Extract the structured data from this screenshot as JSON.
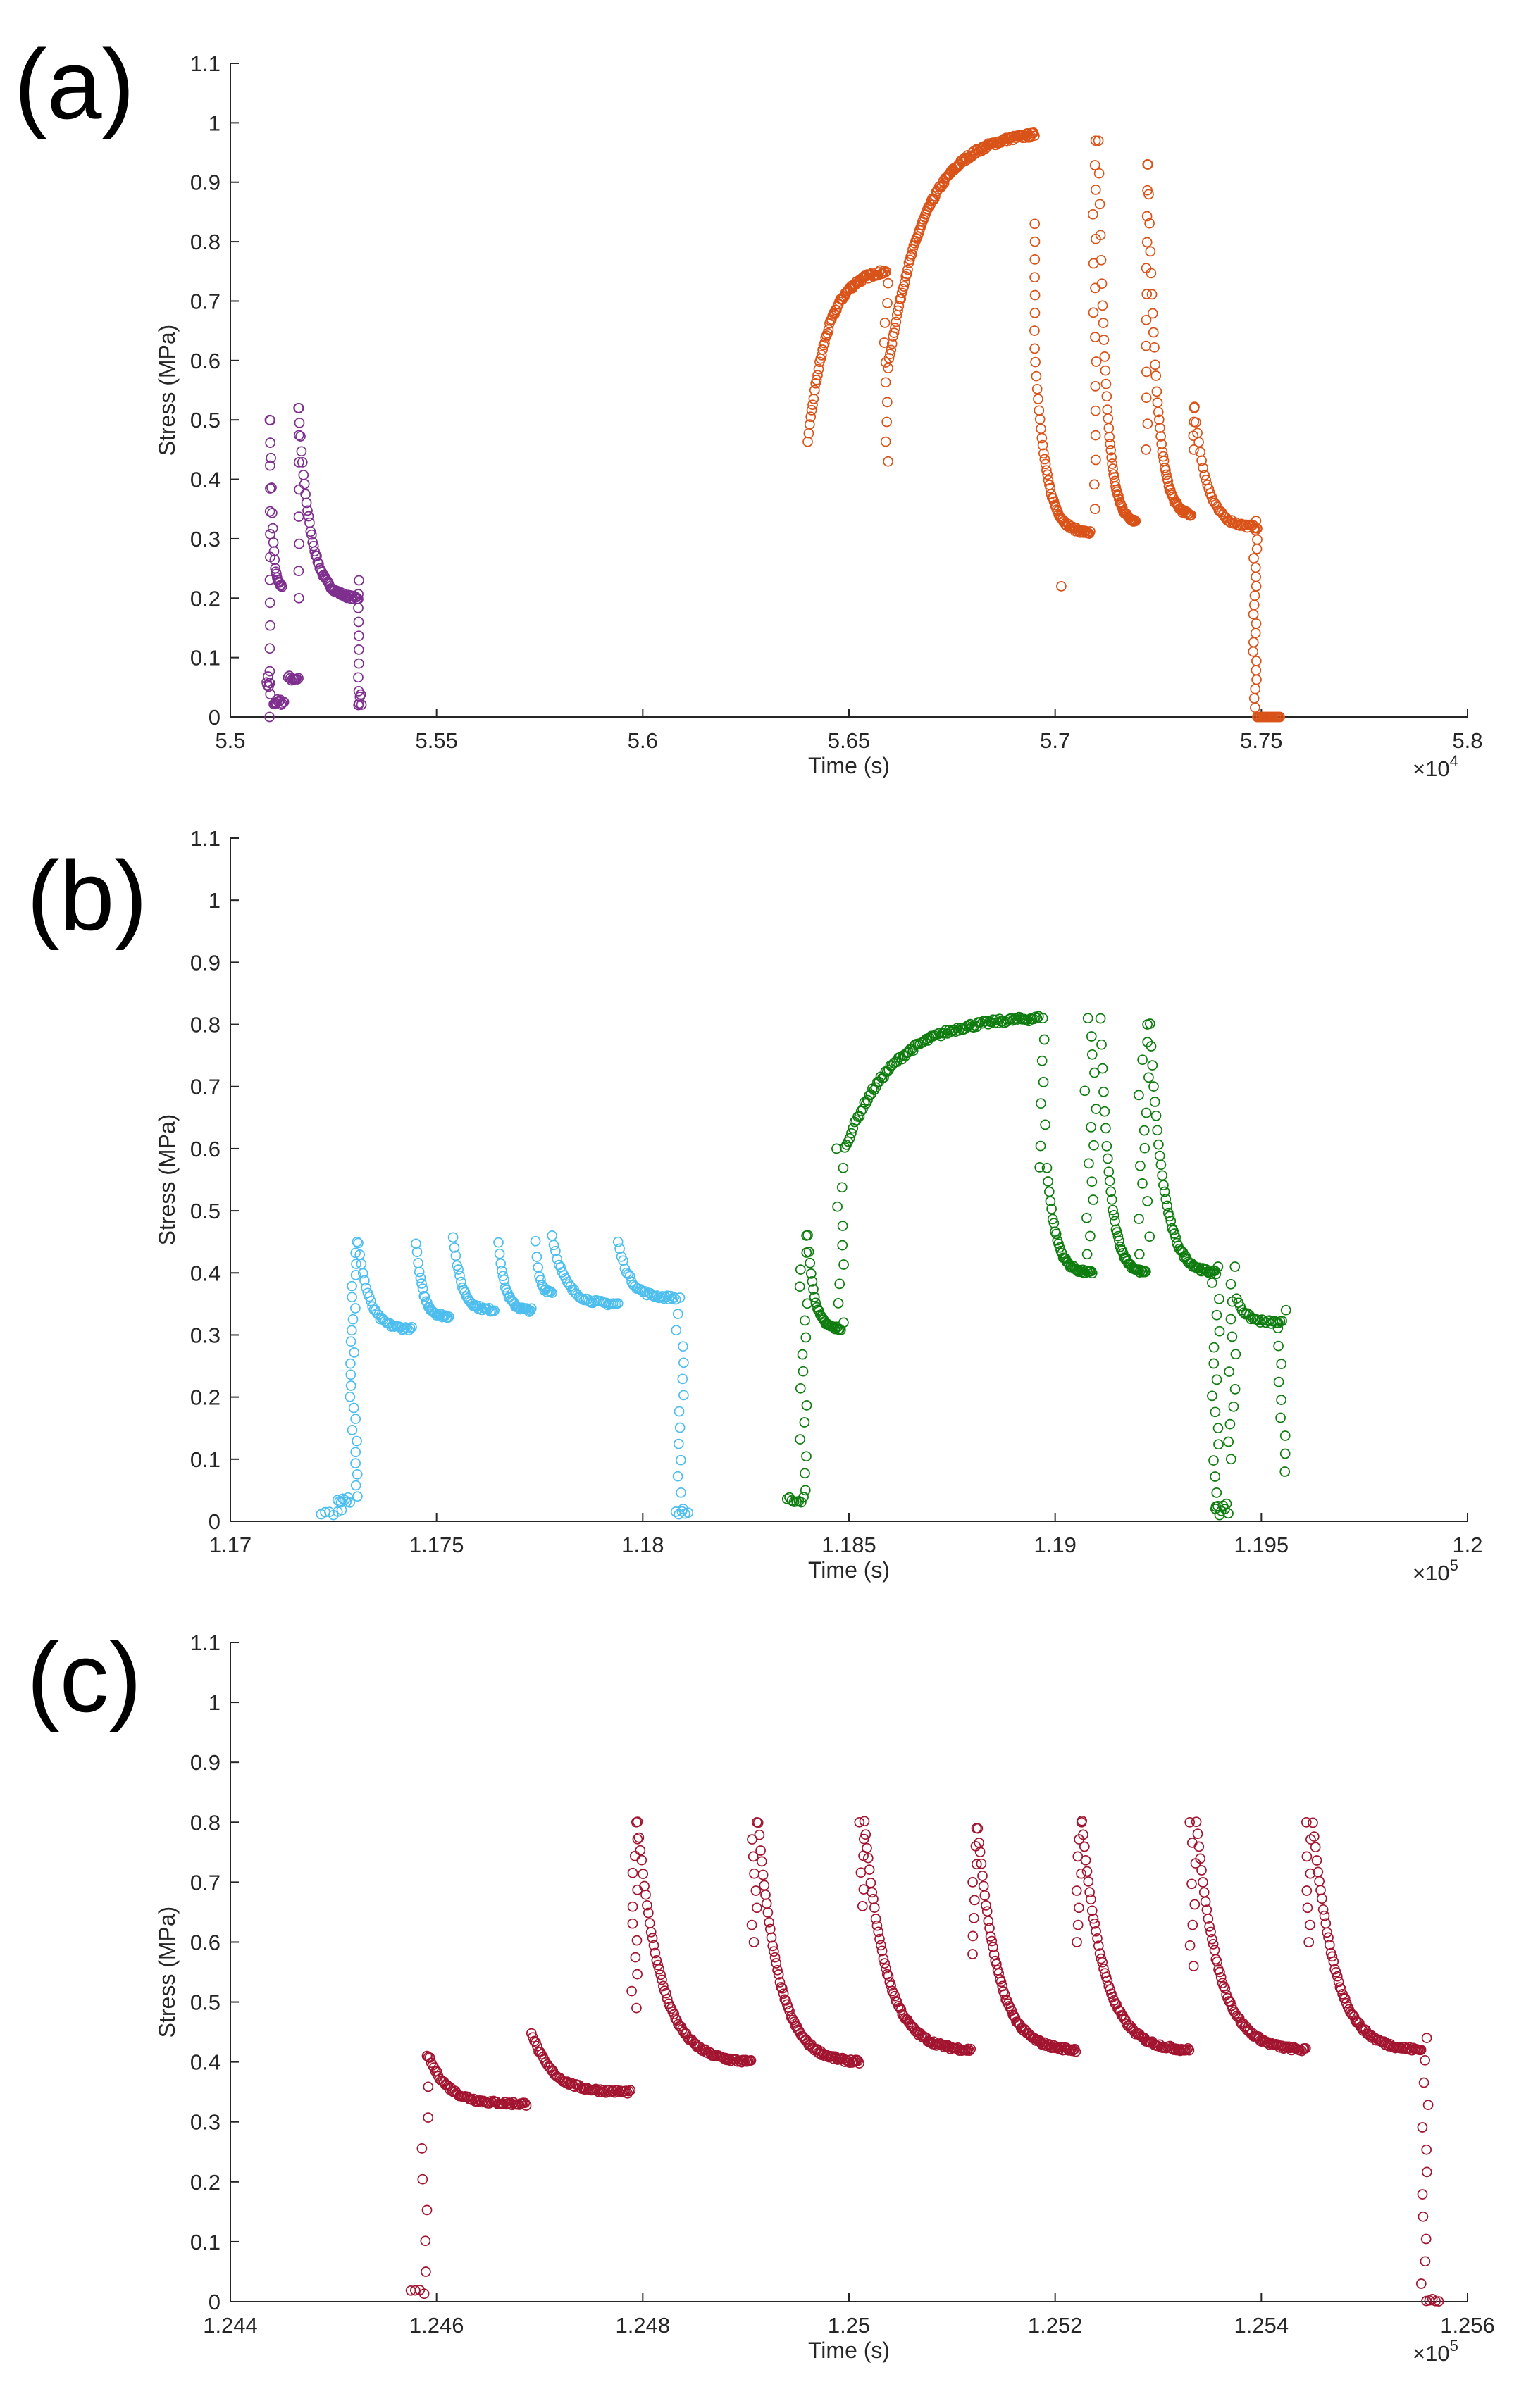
{
  "chart_data": [
    {
      "type": "scatter",
      "panel_label": "(a)",
      "title": "",
      "xlabel": "Time (s)",
      "ylabel": "Stress (MPa)",
      "xlim": [
        5.5,
        5.8
      ],
      "ylim": [
        0,
        1.1
      ],
      "x_scale_label": "×10",
      "x_scale_exp": "4",
      "x_ticks": [
        5.5,
        5.55,
        5.6,
        5.65,
        5.7,
        5.75,
        5.8
      ],
      "x_tick_labels": [
        "5.5",
        "5.55",
        "5.6",
        "5.65",
        "5.7",
        "5.75",
        "5.8"
      ],
      "y_ticks": [
        0,
        0.1,
        0.2,
        0.3,
        0.4,
        0.5,
        0.6,
        0.7,
        0.8,
        0.9,
        1,
        1.1
      ],
      "y_tick_labels": [
        "0",
        "0.1",
        "0.2",
        "0.3",
        "0.4",
        "0.5",
        "0.6",
        "0.7",
        "0.8",
        "0.9",
        "1",
        "1.1"
      ],
      "series": [
        {
          "name": "series-1",
          "color": "#7e2f8e",
          "segments": [
            {
              "kind": "drop",
              "x0": 5.5095,
              "x1": 5.5097,
              "y0": 0.0,
              "y1": 0.5,
              "n": 14
            },
            {
              "kind": "decay",
              "x0": 5.5097,
              "x1": 5.5125,
              "y0": 0.5,
              "y1": 0.22,
              "n": 20
            },
            {
              "kind": "flat",
              "x0": 5.5105,
              "x1": 5.513,
              "y0": 0.02,
              "y1": 0.03,
              "n": 12
            },
            {
              "kind": "flat",
              "x0": 5.5088,
              "x1": 5.5096,
              "y0": 0.05,
              "y1": 0.07,
              "n": 6
            },
            {
              "kind": "flat",
              "x0": 5.514,
              "x1": 5.5165,
              "y0": 0.06,
              "y1": 0.07,
              "n": 10
            },
            {
              "kind": "drop",
              "x0": 5.5165,
              "x1": 5.5167,
              "y0": 0.2,
              "y1": 0.52,
              "n": 8
            },
            {
              "kind": "decay",
              "x0": 5.5165,
              "x1": 5.531,
              "y0": 0.52,
              "y1": 0.2,
              "n": 60
            },
            {
              "kind": "drop",
              "x0": 5.531,
              "x1": 5.5312,
              "y0": 0.02,
              "y1": 0.23,
              "n": 10
            },
            {
              "kind": "flat",
              "x0": 5.5312,
              "x1": 5.5318,
              "y0": 0.02,
              "y1": 0.04,
              "n": 4
            }
          ]
        },
        {
          "name": "series-2",
          "color": "#d95319",
          "segments": [
            {
              "kind": "rise",
              "x0": 5.64,
              "x1": 5.659,
              "y0": 0.46,
              "y1": 0.75,
              "n": 80
            },
            {
              "kind": "drop",
              "x0": 5.6585,
              "x1": 5.6595,
              "y0": 0.43,
              "y1": 0.73,
              "n": 10
            },
            {
              "kind": "rise",
              "x0": 5.6595,
              "x1": 5.695,
              "y0": 0.59,
              "y1": 0.98,
              "n": 150
            },
            {
              "kind": "drop",
              "x0": 5.695,
              "x1": 5.6952,
              "y0": 0.62,
              "y1": 0.83,
              "n": 8
            },
            {
              "kind": "decay",
              "x0": 5.6952,
              "x1": 5.7085,
              "y0": 0.6,
              "y1": 0.31,
              "n": 60
            },
            {
              "kind": "flat",
              "x0": 5.7015,
              "x1": 5.702,
              "y0": 0.22,
              "y1": 0.22,
              "n": 1
            },
            {
              "kind": "drop",
              "x0": 5.709,
              "x1": 5.71,
              "y0": 0.35,
              "y1": 0.97,
              "n": 16
            },
            {
              "kind": "decay",
              "x0": 5.7105,
              "x1": 5.7195,
              "y0": 0.97,
              "y1": 0.33,
              "n": 55
            },
            {
              "kind": "drop",
              "x0": 5.722,
              "x1": 5.7225,
              "y0": 0.45,
              "y1": 0.93,
              "n": 12
            },
            {
              "kind": "decay",
              "x0": 5.7225,
              "x1": 5.733,
              "y0": 0.93,
              "y1": 0.34,
              "n": 55
            },
            {
              "kind": "drop",
              "x0": 5.7335,
              "x1": 5.7338,
              "y0": 0.45,
              "y1": 0.52,
              "n": 4
            },
            {
              "kind": "decay",
              "x0": 5.7338,
              "x1": 5.749,
              "y0": 0.52,
              "y1": 0.32,
              "n": 45
            },
            {
              "kind": "drop",
              "x0": 5.748,
              "x1": 5.749,
              "y0": 0.0,
              "y1": 0.33,
              "n": 22
            },
            {
              "kind": "flat",
              "x0": 5.749,
              "x1": 5.7545,
              "y0": 0.0,
              "y1": 0.0,
              "n": 18
            }
          ]
        }
      ]
    },
    {
      "type": "scatter",
      "panel_label": "(b)",
      "title": "",
      "xlabel": "Time (s)",
      "ylabel": "Stress (MPa)",
      "xlim": [
        1.17,
        1.2
      ],
      "ylim": [
        0,
        1.1
      ],
      "x_scale_label": "×10",
      "x_scale_exp": "5",
      "x_ticks": [
        1.17,
        1.175,
        1.18,
        1.185,
        1.19,
        1.195,
        1.2
      ],
      "x_tick_labels": [
        "1.17",
        "1.175",
        "1.18",
        "1.185",
        "1.19",
        "1.195",
        "1.2"
      ],
      "y_ticks": [
        0,
        0.1,
        0.2,
        0.3,
        0.4,
        0.5,
        0.6,
        0.7,
        0.8,
        0.9,
        1,
        1.1
      ],
      "y_tick_labels": [
        "0",
        "0.1",
        "0.2",
        "0.3",
        "0.4",
        "0.5",
        "0.6",
        "0.7",
        "0.8",
        "0.9",
        "1",
        "1.1"
      ],
      "series": [
        {
          "name": "series-1",
          "color": "#4dbeee",
          "segments": [
            {
              "kind": "flat",
              "x0": 1.1722,
              "x1": 1.1727,
              "y0": 0.01,
              "y1": 0.02,
              "n": 6
            },
            {
              "kind": "flat",
              "x0": 1.1726,
              "x1": 1.1729,
              "y0": 0.03,
              "y1": 0.04,
              "n": 8
            },
            {
              "kind": "drop",
              "x0": 1.1729,
              "x1": 1.1731,
              "y0": 0.04,
              "y1": 0.45,
              "n": 24
            },
            {
              "kind": "decay",
              "x0": 1.1731,
              "x1": 1.1744,
              "y0": 0.45,
              "y1": 0.31,
              "n": 35
            },
            {
              "kind": "decay",
              "x0": 1.1745,
              "x1": 1.1753,
              "y0": 0.45,
              "y1": 0.33,
              "n": 30
            },
            {
              "kind": "decay",
              "x0": 1.1754,
              "x1": 1.1764,
              "y0": 0.46,
              "y1": 0.34,
              "n": 32
            },
            {
              "kind": "decay",
              "x0": 1.1765,
              "x1": 1.1773,
              "y0": 0.45,
              "y1": 0.34,
              "n": 30
            },
            {
              "kind": "decay",
              "x0": 1.1774,
              "x1": 1.1778,
              "y0": 0.45,
              "y1": 0.37,
              "n": 14
            },
            {
              "kind": "decay",
              "x0": 1.1778,
              "x1": 1.1794,
              "y0": 0.46,
              "y1": 0.35,
              "n": 40
            },
            {
              "kind": "decay",
              "x0": 1.1794,
              "x1": 1.1808,
              "y0": 0.45,
              "y1": 0.36,
              "n": 35
            },
            {
              "kind": "drop",
              "x0": 1.1808,
              "x1": 1.181,
              "y0": 0.02,
              "y1": 0.36,
              "n": 14
            },
            {
              "kind": "flat",
              "x0": 1.1808,
              "x1": 1.1811,
              "y0": 0.01,
              "y1": 0.02,
              "n": 5
            }
          ]
        },
        {
          "name": "series-2",
          "color": "#0e7c0e",
          "segments": [
            {
              "kind": "flat",
              "x0": 1.1835,
              "x1": 1.1839,
              "y0": 0.03,
              "y1": 0.04,
              "n": 8
            },
            {
              "kind": "drop",
              "x0": 1.1838,
              "x1": 1.184,
              "y0": 0.05,
              "y1": 0.46,
              "n": 16
            },
            {
              "kind": "decay",
              "x0": 1.184,
              "x1": 1.1848,
              "y0": 0.46,
              "y1": 0.31,
              "n": 30
            },
            {
              "kind": "drop",
              "x0": 1.1847,
              "x1": 1.1849,
              "y0": 0.32,
              "y1": 0.6,
              "n": 10
            },
            {
              "kind": "rise",
              "x0": 1.1849,
              "x1": 1.1896,
              "y0": 0.6,
              "y1": 0.81,
              "n": 120
            },
            {
              "kind": "drop",
              "x0": 1.1896,
              "x1": 1.1898,
              "y0": 0.57,
              "y1": 0.81,
              "n": 8
            },
            {
              "kind": "decay",
              "x0": 1.1898,
              "x1": 1.1909,
              "y0": 0.57,
              "y1": 0.4,
              "n": 40
            },
            {
              "kind": "drop",
              "x0": 1.1907,
              "x1": 1.191,
              "y0": 0.43,
              "y1": 0.81,
              "n": 14
            },
            {
              "kind": "decay",
              "x0": 1.1911,
              "x1": 1.1922,
              "y0": 0.81,
              "y1": 0.4,
              "n": 45
            },
            {
              "kind": "drop",
              "x0": 1.192,
              "x1": 1.1923,
              "y0": 0.43,
              "y1": 0.8,
              "n": 14
            },
            {
              "kind": "decay",
              "x0": 1.1923,
              "x1": 1.1939,
              "y0": 0.8,
              "y1": 0.4,
              "n": 55
            },
            {
              "kind": "drop",
              "x0": 1.1938,
              "x1": 1.194,
              "y0": 0.02,
              "y1": 0.41,
              "n": 16
            },
            {
              "kind": "flat",
              "x0": 1.1939,
              "x1": 1.1942,
              "y0": 0.01,
              "y1": 0.03,
              "n": 8
            },
            {
              "kind": "drop",
              "x0": 1.1942,
              "x1": 1.1944,
              "y0": 0.1,
              "y1": 0.41,
              "n": 12
            },
            {
              "kind": "decay",
              "x0": 1.1944,
              "x1": 1.1955,
              "y0": 0.36,
              "y1": 0.32,
              "n": 26
            },
            {
              "kind": "drop",
              "x0": 1.1954,
              "x1": 1.1956,
              "y0": 0.08,
              "y1": 0.34,
              "n": 10
            }
          ]
        }
      ]
    },
    {
      "type": "scatter",
      "panel_label": "(c)",
      "title": "",
      "xlabel": "Time (s)",
      "ylabel": "Stress (MPa)",
      "xlim": [
        1.244,
        1.256
      ],
      "ylim": [
        0,
        1.1
      ],
      "x_scale_label": "×10",
      "x_scale_exp": "5",
      "x_ticks": [
        1.244,
        1.246,
        1.248,
        1.25,
        1.252,
        1.254,
        1.256
      ],
      "x_tick_labels": [
        "1.244",
        "1.246",
        "1.248",
        "1.25",
        "1.252",
        "1.254",
        "1.256"
      ],
      "y_ticks": [
        0,
        0.1,
        0.2,
        0.3,
        0.4,
        0.5,
        0.6,
        0.7,
        0.8,
        0.9,
        1,
        1.1
      ],
      "y_tick_labels": [
        "0",
        "0.1",
        "0.2",
        "0.3",
        "0.4",
        "0.5",
        "0.6",
        "0.7",
        "0.8",
        "0.9",
        "1",
        "1.1"
      ],
      "series": [
        {
          "name": "series-1",
          "color": "#a2142f",
          "segments": [
            {
              "kind": "flat",
              "x0": 1.24575,
              "x1": 1.24588,
              "y0": 0.01,
              "y1": 0.02,
              "n": 4
            },
            {
              "kind": "drop",
              "x0": 1.24585,
              "x1": 1.24592,
              "y0": 0.05,
              "y1": 0.41,
              "n": 8
            },
            {
              "kind": "decay",
              "x0": 1.24592,
              "x1": 1.24687,
              "y0": 0.41,
              "y1": 0.33,
              "n": 70
            },
            {
              "kind": "decay",
              "x0": 1.24692,
              "x1": 1.24788,
              "y0": 0.45,
              "y1": 0.35,
              "n": 70
            },
            {
              "kind": "drop",
              "x0": 1.24788,
              "x1": 1.24795,
              "y0": 0.49,
              "y1": 0.8,
              "n": 12
            },
            {
              "kind": "decay",
              "x0": 1.24795,
              "x1": 1.24905,
              "y0": 0.8,
              "y1": 0.4,
              "n": 85
            },
            {
              "kind": "drop",
              "x0": 1.24905,
              "x1": 1.24912,
              "y0": 0.6,
              "y1": 0.8,
              "n": 8
            },
            {
              "kind": "decay",
              "x0": 1.24912,
              "x1": 1.2501,
              "y0": 0.8,
              "y1": 0.4,
              "n": 85
            },
            {
              "kind": "drop",
              "x0": 1.2501,
              "x1": 1.25015,
              "y0": 0.66,
              "y1": 0.8,
              "n": 6
            },
            {
              "kind": "decay",
              "x0": 1.25015,
              "x1": 1.25118,
              "y0": 0.8,
              "y1": 0.42,
              "n": 85
            },
            {
              "kind": "drop",
              "x0": 1.25118,
              "x1": 1.25125,
              "y0": 0.58,
              "y1": 0.79,
              "n": 8
            },
            {
              "kind": "decay",
              "x0": 1.25125,
              "x1": 1.2522,
              "y0": 0.79,
              "y1": 0.42,
              "n": 85
            },
            {
              "kind": "drop",
              "x0": 1.2522,
              "x1": 1.25226,
              "y0": 0.6,
              "y1": 0.8,
              "n": 8
            },
            {
              "kind": "decay",
              "x0": 1.25226,
              "x1": 1.2533,
              "y0": 0.8,
              "y1": 0.42,
              "n": 85
            },
            {
              "kind": "drop",
              "x0": 1.2533,
              "x1": 1.25337,
              "y0": 0.56,
              "y1": 0.8,
              "n": 8
            },
            {
              "kind": "decay",
              "x0": 1.25337,
              "x1": 1.25443,
              "y0": 0.8,
              "y1": 0.42,
              "n": 85
            },
            {
              "kind": "drop",
              "x0": 1.25443,
              "x1": 1.2545,
              "y0": 0.6,
              "y1": 0.8,
              "n": 8
            },
            {
              "kind": "decay",
              "x0": 1.2545,
              "x1": 1.25555,
              "y0": 0.8,
              "y1": 0.42,
              "n": 85
            },
            {
              "kind": "drop",
              "x0": 1.25555,
              "x1": 1.25562,
              "y0": 0.03,
              "y1": 0.44,
              "n": 12
            },
            {
              "kind": "flat",
              "x0": 1.2556,
              "x1": 1.25572,
              "y0": 0.0,
              "y1": 0.01,
              "n": 5
            }
          ]
        }
      ]
    }
  ]
}
